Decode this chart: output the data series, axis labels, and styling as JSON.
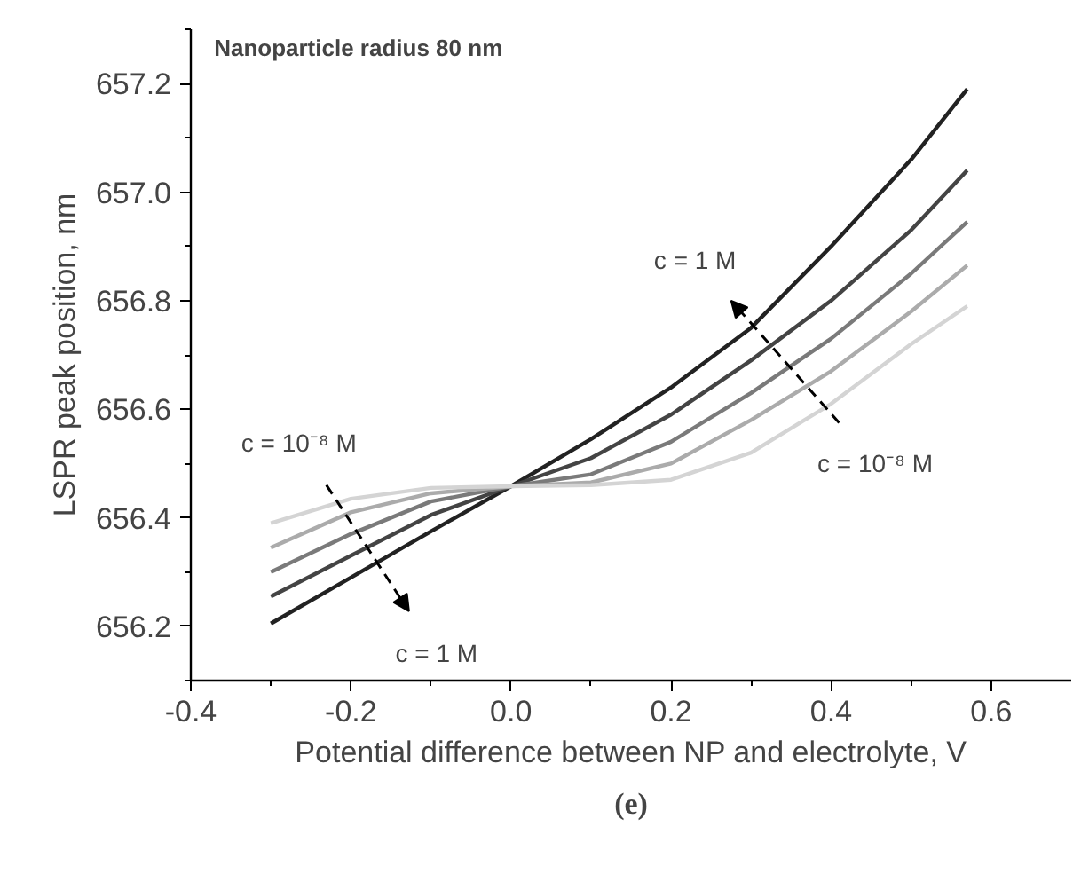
{
  "chart_data": {
    "type": "line",
    "title": "Nanoparticle radius 80 nm",
    "xlabel": "Potential difference between NP and electrolyte, V",
    "ylabel": "LSPR peak position, nm",
    "x": [
      -0.3,
      -0.2,
      -0.1,
      0,
      0.1,
      0.2,
      0.3,
      0.4,
      0.5,
      0.57
    ],
    "series": [
      {
        "color": "#222222",
        "values": [
          656.205,
          656.29,
          656.375,
          656.458,
          656.545,
          656.64,
          656.75,
          656.9,
          657.06,
          657.19
        ]
      },
      {
        "color": "#444444",
        "values": [
          656.255,
          656.33,
          656.405,
          656.458,
          656.51,
          656.59,
          656.69,
          656.8,
          656.93,
          657.04
        ]
      },
      {
        "color": "#7a7a7a",
        "values": [
          656.3,
          656.37,
          656.43,
          656.458,
          656.48,
          656.54,
          656.63,
          656.73,
          656.85,
          656.945
        ]
      },
      {
        "color": "#ababab",
        "values": [
          656.345,
          656.41,
          656.445,
          656.458,
          656.465,
          656.5,
          656.58,
          656.67,
          656.78,
          656.865
        ]
      },
      {
        "color": "#d4d4d4",
        "values": [
          656.39,
          656.435,
          656.455,
          656.458,
          656.46,
          656.47,
          656.52,
          656.61,
          656.72,
          656.79
        ]
      }
    ],
    "xlim": [
      -0.4,
      0.7
    ],
    "xticks": [
      {
        "value": -0.4,
        "label": "-0.4"
      },
      {
        "value": -0.2,
        "label": "-0.2"
      },
      {
        "value": 0,
        "label": "0.0"
      },
      {
        "value": 0.2,
        "label": "0.2"
      },
      {
        "value": 0.4,
        "label": "0.4"
      },
      {
        "value": 0.6,
        "label": "0.6"
      }
    ],
    "ylim": [
      656.1,
      657.3
    ],
    "yticks": [
      656.2,
      656.4,
      656.6,
      656.8,
      {
        "value": 657.0,
        "label": "657.0"
      },
      657.2
    ],
    "annotations": [
      "c = 1 M",
      "c = 10⁻⁸ M",
      "c = 1 M",
      "c = 10⁻⁸ M",
      "(e)"
    ],
    "grid": false,
    "marker": "none",
    "line_style": "solid"
  }
}
